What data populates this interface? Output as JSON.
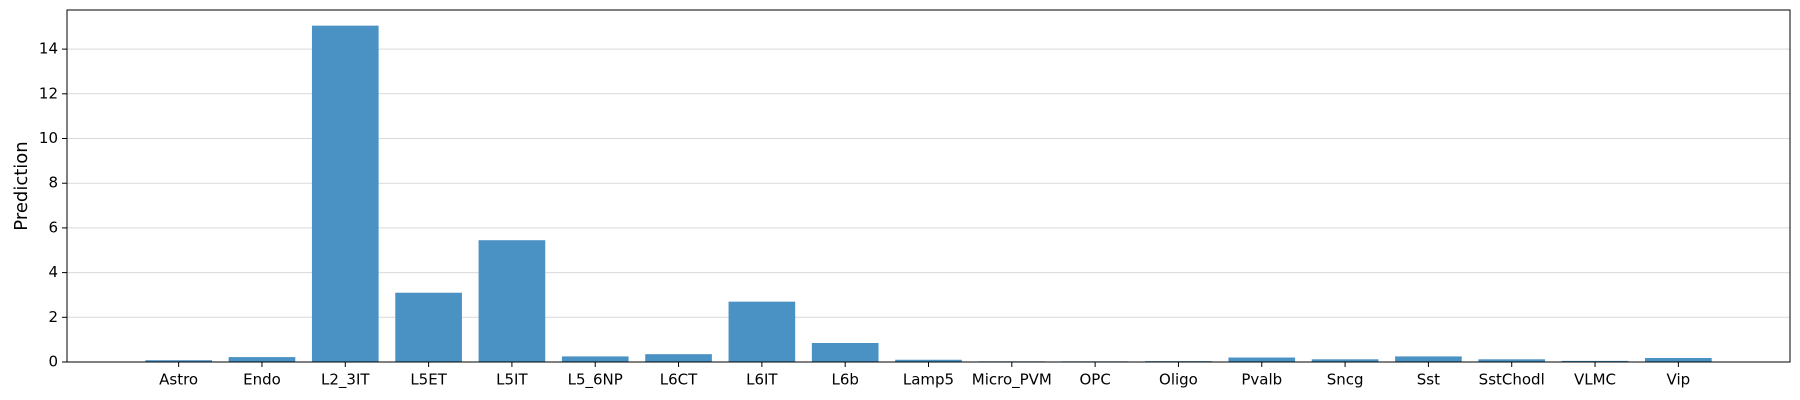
{
  "chart_data": {
    "type": "bar",
    "ylabel": "Prediction",
    "categories": [
      "Astro",
      "Endo",
      "L2_3IT",
      "L5ET",
      "L5IT",
      "L5_6NP",
      "L6CT",
      "L6IT",
      "L6b",
      "Lamp5",
      "Micro_PVM",
      "OPC",
      "Oligo",
      "Pvalb",
      "Sncg",
      "Sst",
      "SstChodl",
      "VLMC",
      "Vip"
    ],
    "values": [
      0.08,
      0.22,
      15.05,
      3.1,
      5.45,
      0.25,
      0.35,
      2.7,
      0.85,
      0.1,
      0.03,
      0.03,
      0.04,
      0.2,
      0.12,
      0.25,
      0.12,
      0.05,
      0.18
    ],
    "color": "#4a91c4",
    "ylim": [
      0,
      15.75
    ],
    "yticks": [
      0,
      2,
      4,
      6,
      8,
      10,
      12,
      14
    ],
    "grid": true
  }
}
